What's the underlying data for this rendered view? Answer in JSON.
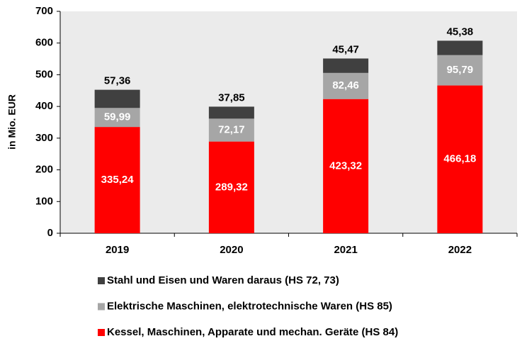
{
  "chart_data": {
    "type": "stacked_bar",
    "ylabel": "in Mio. EUR",
    "categories": [
      "2019",
      "2020",
      "2021",
      "2022"
    ],
    "series": [
      {
        "name": "Kessel, Maschinen, Apparate und mechan. Geräte (HS 84)",
        "color": "#ff0000",
        "values": [
          335.24,
          289.32,
          423.32,
          466.18
        ],
        "value_labels": [
          "335,24",
          "289,32",
          "423,32",
          "466,18"
        ]
      },
      {
        "name": "Elektrische Maschinen, elektrotechnische Waren (HS 85)",
        "color": "#a6a6a6",
        "values": [
          59.99,
          72.17,
          82.46,
          95.79
        ],
        "value_labels": [
          "59,99",
          "72,17",
          "82,46",
          "95,79"
        ]
      },
      {
        "name": "Stahl und Eisen und Waren daraus (HS 72, 73)",
        "color": "#404040",
        "values": [
          57.36,
          37.85,
          45.47,
          45.38
        ],
        "value_labels": [
          "57,36",
          "37,85",
          "45,47",
          "45,38"
        ]
      }
    ],
    "ylim": [
      0,
      700
    ],
    "yticks": [
      0,
      100,
      200,
      300,
      400,
      500,
      600,
      700
    ],
    "grid": false
  }
}
